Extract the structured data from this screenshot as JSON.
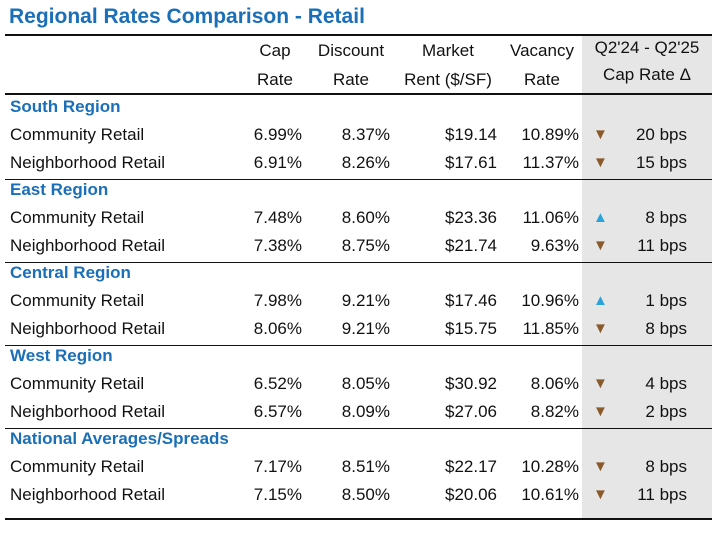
{
  "title": "Regional Rates Comparison - Retail",
  "headers": {
    "cap": [
      "Cap",
      "Rate"
    ],
    "discount": [
      "Discount",
      "Rate"
    ],
    "market": [
      "Market",
      "Rent ($/SF)"
    ],
    "vacancy": [
      "Vacancy",
      "Rate"
    ],
    "change": [
      "Q2'24 - Q2'25",
      "Cap Rate Δ"
    ]
  },
  "arrows": {
    "up": "▲",
    "down": "▼"
  },
  "colors": {
    "accent": "#1a6fb8",
    "up": "#2aa3dc",
    "down": "#8a5a2b",
    "shade": "#e6e6e6"
  },
  "regions": [
    {
      "name": "South Region",
      "rows": [
        {
          "type": "Community Retail",
          "cap": "6.99%",
          "discount": "8.37%",
          "rent": "$19.14",
          "vacancy": "10.89%",
          "dir": "down",
          "bps": "20 bps"
        },
        {
          "type": "Neighborhood Retail",
          "cap": "6.91%",
          "discount": "8.26%",
          "rent": "$17.61",
          "vacancy": "11.37%",
          "dir": "down",
          "bps": "15 bps"
        }
      ]
    },
    {
      "name": "East Region",
      "rows": [
        {
          "type": "Community Retail",
          "cap": "7.48%",
          "discount": "8.60%",
          "rent": "$23.36",
          "vacancy": "11.06%",
          "dir": "up",
          "bps": "8 bps"
        },
        {
          "type": "Neighborhood Retail",
          "cap": "7.38%",
          "discount": "8.75%",
          "rent": "$21.74",
          "vacancy": "9.63%",
          "dir": "down",
          "bps": "11 bps"
        }
      ]
    },
    {
      "name": "Central Region",
      "rows": [
        {
          "type": "Community Retail",
          "cap": "7.98%",
          "discount": "9.21%",
          "rent": "$17.46",
          "vacancy": "10.96%",
          "dir": "up",
          "bps": "1 bps"
        },
        {
          "type": "Neighborhood Retail",
          "cap": "8.06%",
          "discount": "9.21%",
          "rent": "$15.75",
          "vacancy": "11.85%",
          "dir": "down",
          "bps": "8 bps"
        }
      ]
    },
    {
      "name": "West Region",
      "rows": [
        {
          "type": "Community Retail",
          "cap": "6.52%",
          "discount": "8.05%",
          "rent": "$30.92",
          "vacancy": "8.06%",
          "dir": "down",
          "bps": "4 bps"
        },
        {
          "type": "Neighborhood Retail",
          "cap": "6.57%",
          "discount": "8.09%",
          "rent": "$27.06",
          "vacancy": "8.82%",
          "dir": "down",
          "bps": "2 bps"
        }
      ]
    },
    {
      "name": "National Averages/Spreads",
      "rows": [
        {
          "type": "Community Retail",
          "cap": "7.17%",
          "discount": "8.51%",
          "rent": "$22.17",
          "vacancy": "10.28%",
          "dir": "down",
          "bps": "8 bps"
        },
        {
          "type": "Neighborhood Retail",
          "cap": "7.15%",
          "discount": "8.50%",
          "rent": "$20.06",
          "vacancy": "10.61%",
          "dir": "down",
          "bps": "11 bps"
        }
      ]
    }
  ]
}
